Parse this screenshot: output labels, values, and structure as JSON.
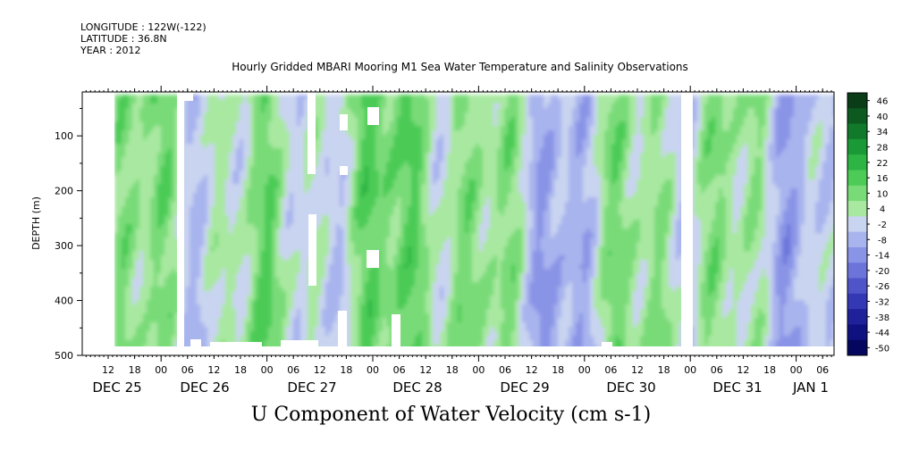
{
  "header": {
    "longitude": "LONGITUDE : 122W(-122)",
    "latitude": "LATITUDE : 36.8N",
    "year": "YEAR : 2012",
    "title": "Hourly Gridded MBARI Mooring M1 Sea Water Temperature and Salinity Observations"
  },
  "chart_data": {
    "type": "heatmap",
    "title": "Hourly Gridded MBARI Mooring M1 Sea Water Temperature and Salinity Observations",
    "xlabel": "U Component of Water Velocity (cm s-1)",
    "ylabel": "DEPTH (m)",
    "ylim": [
      500,
      20
    ],
    "y_ticks": [
      100,
      200,
      300,
      400,
      500
    ],
    "x_hour_ticks": [
      "12",
      "18",
      "00",
      "06",
      "12",
      "18",
      "00",
      "06",
      "12",
      "18",
      "00",
      "06",
      "12",
      "18",
      "00",
      "06",
      "12",
      "18",
      "00",
      "06",
      "12",
      "18",
      "00",
      "06",
      "12",
      "18",
      "00",
      "06"
    ],
    "x_day_labels": [
      "DEC 25",
      "DEC 26",
      "DEC 27",
      "DEC 28",
      "DEC 29",
      "DEC 30",
      "DEC 31",
      "JAN  1"
    ],
    "colorbar": {
      "levels": [
        "46",
        "40",
        "34",
        "28",
        "22",
        "16",
        "10",
        "4",
        "-2",
        "-8",
        "-14",
        "-20",
        "-26",
        "-32",
        "-38",
        "-44",
        "-50"
      ],
      "colors": [
        "#0a3d17",
        "#0c5a20",
        "#117a2a",
        "#1a9a36",
        "#2db544",
        "#4ccb57",
        "#79db78",
        "#a8e8a0",
        "#c9d4f0",
        "#a8b4ee",
        "#8a94e6",
        "#6c74da",
        "#4f55c9",
        "#3538b4",
        "#1f219a",
        "#101180",
        "#05075e"
      ]
    }
  }
}
